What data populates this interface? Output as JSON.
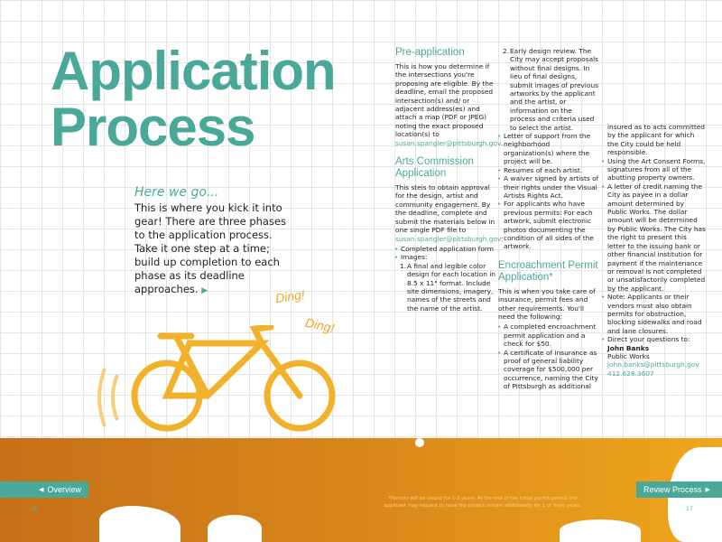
{
  "title": [
    "Application",
    "Process"
  ],
  "intro": {
    "heading": "Here we go...",
    "text": "This is where you kick it into gear! There are three phases to the application process. Take it one step at a time; build up completion to each phase as its deadline approaches."
  },
  "illustration": {
    "ding1": "Ding!",
    "ding2": "Ding!",
    "accent": "#f2b12a"
  },
  "preapp": {
    "heading": "Pre-application",
    "text": "This is how you determine if the intersections you're proposing are eligible. By the deadline, email the proposed intersection(s) and/ or adjacent address(es) and attach a map (PDF or JPEG) noting the exact proposed location(s) to ",
    "email": "susan.spangler@pittsburgh.gov",
    "end": "."
  },
  "arts": {
    "heading": "Arts Commission Application",
    "text": "This steis to obtain approval for the design, artist and community engagement. By the deadline, complete and submit the materials below in one single PDF file to ",
    "email": "susan.spangler@pittsburgh.gov",
    "end": ":",
    "items": [
      "Completed application form",
      "Images:"
    ],
    "numbered": [
      {
        "n": "1.",
        "text": "A final and legible color design for each location in 8.5 x 11\" format. Include site dimensions, imagery, names of the streets and the name of the artist."
      },
      {
        "n": "2.",
        "text": "Early design review. The City may accept proposals without final designs. In lieu of final designs, submit images of previous artworks by the applicant and the artist, or information on the process and criteria used to select the artist."
      }
    ],
    "items2": [
      "Letter of support from the neighborhood organization(s) where the project will be.",
      "Resumes of each artist.",
      "A waiver signed by artists of their rights under the Visual Artists Rights Act.",
      "For applicants who have previous permits: For each artwork, submit electronic photos documenting the condition of all sides of the artwork."
    ]
  },
  "encroach": {
    "heading": "Encroachment Permit Application*",
    "text": "This is when you take care of insurance, permit fees and other requirements. You'll need the following:",
    "items": [
      "A completed encroachment permit application and a check for $50.",
      "A certificate of insurance as proof of general liability coverage for $500,000 per occurrence, naming the City of Pittsburgh as additional"
    ],
    "cont": "insured as to acts committed by the applicant for which the City could be held responsible.",
    "items2": [
      "Using the Art Consent Forms, signatures from all of the abutting property owners.",
      "A letter of credit naming the City as payee in a dollar amount determined by Public Works. The dollar amount will be determined by Public Works. The City has the right to present this letter to the issuing bank or other financial institution for payment if the maintenance or removal is not completed or unsatisfactorily completed by the applicant.",
      "Note: Applicants or their vendors must also obtain permits for obstruction, blocking sidewalks and road and lane closures.",
      "Direct your questions to:"
    ],
    "contact": {
      "name": "John Banks",
      "dept": "Public Works",
      "email": "john.banks@pittsburgh.gov",
      "phone": "412.628.3607"
    }
  },
  "footer": {
    "note": "*Permits will be issued for 1-3 years. At the end of the initial permit period, the applicant may request to have the project remain additionally for 1 or more years.",
    "prev": "Overview",
    "next": "Review Process",
    "page_left": "16",
    "page_right": "17"
  },
  "colors": {
    "teal": "#4aa898",
    "orange_start": "#c6701a",
    "orange_end": "#f0a71d"
  }
}
